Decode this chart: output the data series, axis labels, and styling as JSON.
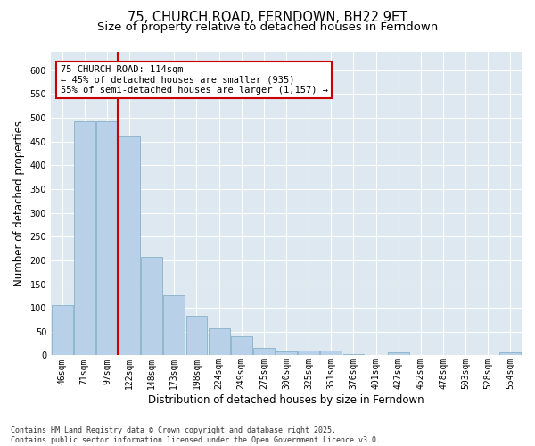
{
  "title_line1": "75, CHURCH ROAD, FERNDOWN, BH22 9ET",
  "title_line2": "Size of property relative to detached houses in Ferndown",
  "xlabel": "Distribution of detached houses by size in Ferndown",
  "ylabel": "Number of detached properties",
  "categories": [
    "46sqm",
    "71sqm",
    "97sqm",
    "122sqm",
    "148sqm",
    "173sqm",
    "198sqm",
    "224sqm",
    "249sqm",
    "275sqm",
    "300sqm",
    "325sqm",
    "351sqm",
    "376sqm",
    "401sqm",
    "427sqm",
    "452sqm",
    "478sqm",
    "503sqm",
    "528sqm",
    "554sqm"
  ],
  "values": [
    106,
    492,
    492,
    460,
    207,
    126,
    84,
    57,
    40,
    15,
    9,
    11,
    11,
    3,
    1,
    6,
    0,
    0,
    0,
    0,
    6
  ],
  "bar_color": "#b8d0e8",
  "bar_edge_color": "#7aaabf",
  "vline_pos": 2.5,
  "vline_color": "#cc0000",
  "ylim": [
    0,
    640
  ],
  "yticks": [
    0,
    50,
    100,
    150,
    200,
    250,
    300,
    350,
    400,
    450,
    500,
    550,
    600
  ],
  "annotation_box_text": "75 CHURCH ROAD: 114sqm\n← 45% of detached houses are smaller (935)\n55% of semi-detached houses are larger (1,157) →",
  "box_edge_color": "#cc0000",
  "footnote": "Contains HM Land Registry data © Crown copyright and database right 2025.\nContains public sector information licensed under the Open Government Licence v3.0.",
  "background_color": "#dde8f0",
  "grid_color": "#ffffff",
  "title_fontsize": 10.5,
  "subtitle_fontsize": 9.5,
  "axis_label_fontsize": 8.5,
  "tick_fontsize": 7,
  "annotation_fontsize": 7.5,
  "footnote_fontsize": 6
}
